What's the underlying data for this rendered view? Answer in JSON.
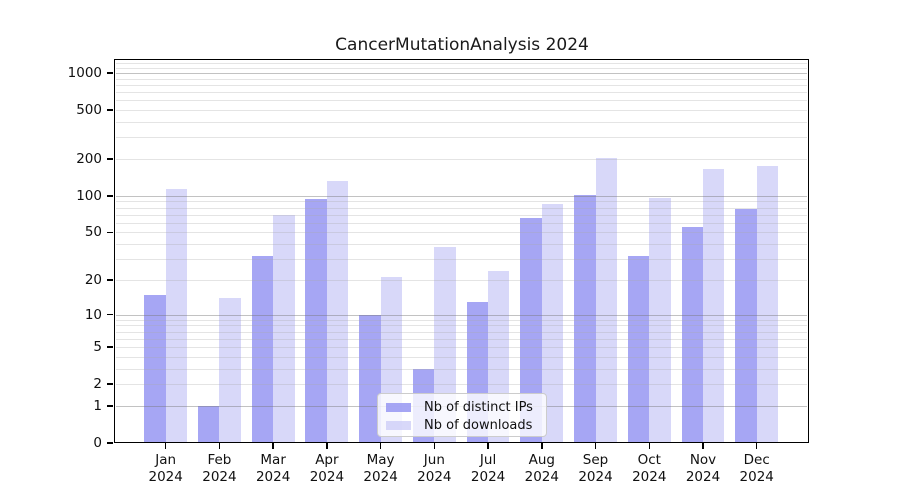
{
  "title": "CancerMutationAnalysis 2024",
  "chart_data": {
    "type": "bar",
    "title": "CancerMutationAnalysis 2024",
    "yscale": "log1p",
    "y_ticks": [
      0,
      1,
      2,
      5,
      10,
      20,
      50,
      100,
      200,
      500,
      1000
    ],
    "ylim": [
      0,
      1300
    ],
    "grid": "horizontal, minor log gridlines, drawn across bars",
    "legend_position": "bottom-center",
    "categories": [
      "Jan 2024",
      "Feb 2024",
      "Mar 2024",
      "Apr 2024",
      "May 2024",
      "Jun 2024",
      "Jul 2024",
      "Aug 2024",
      "Sep 2024",
      "Oct 2024",
      "Nov 2024",
      "Dec 2024"
    ],
    "series": [
      {
        "name": "Nb of distinct IPs",
        "color": "#a9a9f4",
        "values": [
          15,
          1,
          32,
          95,
          10,
          3,
          13,
          66,
          102,
          32,
          56,
          78
        ]
      },
      {
        "name": "Nb of downloads",
        "color": "#d9d9f8",
        "values": [
          113,
          14,
          70,
          132,
          21,
          38,
          24,
          86,
          205,
          96,
          165,
          177
        ]
      }
    ]
  },
  "x_axis": {
    "months": [
      "Jan",
      "Feb",
      "Mar",
      "Apr",
      "May",
      "Jun",
      "Jul",
      "Aug",
      "Sep",
      "Oct",
      "Nov",
      "Dec"
    ],
    "year": "2024"
  },
  "y_axis": {
    "tick_labels": [
      "0",
      "1",
      "2",
      "5",
      "10",
      "20",
      "50",
      "100",
      "200",
      "500",
      "1000"
    ]
  },
  "legend": {
    "items": [
      {
        "label": "Nb of distinct IPs",
        "color": "#a9a9f4"
      },
      {
        "label": "Nb of downloads",
        "color": "#d9d9f8"
      }
    ]
  },
  "colors": {
    "bar_ips": "#a9a9f4",
    "bar_downloads": "#d9d9f8",
    "grid_major": "#c6c6c6",
    "grid_minor": "#e3e3e3",
    "spine": "#000000",
    "background": "#ffffff"
  }
}
